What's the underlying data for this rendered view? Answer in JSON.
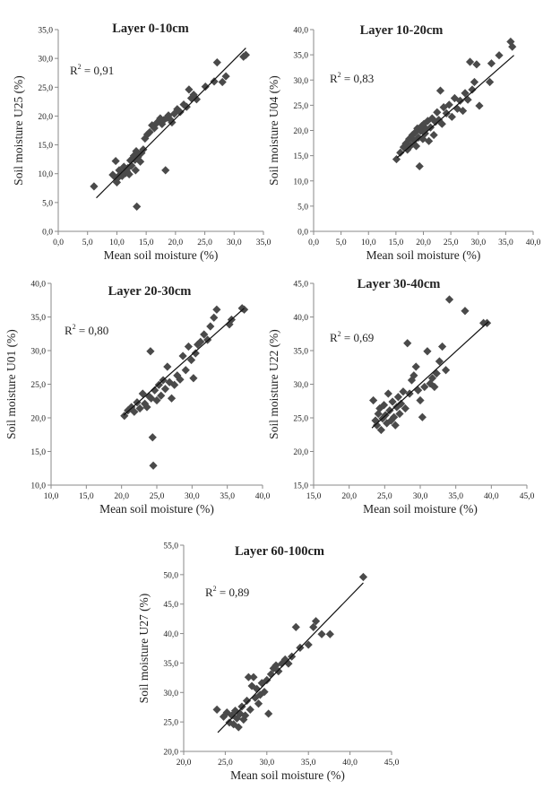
{
  "chart_data": [
    {
      "type": "scatter",
      "title": "Layer 0-10cm",
      "xlabel": "Mean soil moisture (%)",
      "ylabel": "Soil moisture U25 (%)",
      "r2_prefix": "R",
      "r2_exp": "2",
      "r2_value": " = 0,91",
      "xlim": [
        0,
        35
      ],
      "ylim": [
        0,
        35
      ],
      "xticks": [
        "0,0",
        "5,0",
        "10,0",
        "15,0",
        "20,0",
        "25,0",
        "30,0",
        "35,0"
      ],
      "yticks": [
        "0,0",
        "5,0",
        "10,0",
        "15,0",
        "20,0",
        "25,0",
        "30,0",
        "35,0"
      ],
      "trendline": [
        [
          6.5,
          5.8
        ],
        [
          32.0,
          31.8
        ]
      ],
      "points": [
        [
          6.1,
          7.8
        ],
        [
          9.3,
          9.8
        ],
        [
          9.6,
          9.5
        ],
        [
          9.8,
          12.2
        ],
        [
          10.0,
          8.5
        ],
        [
          10.1,
          9.2
        ],
        [
          10.4,
          10.6
        ],
        [
          10.6,
          9.9
        ],
        [
          10.9,
          9.6
        ],
        [
          11.2,
          11.2
        ],
        [
          11.5,
          10.1
        ],
        [
          11.7,
          10.4
        ],
        [
          11.9,
          11.0
        ],
        [
          12.1,
          9.9
        ],
        [
          12.3,
          12.3
        ],
        [
          12.5,
          11.4
        ],
        [
          12.7,
          12.7
        ],
        [
          12.9,
          13.1
        ],
        [
          13.1,
          12.4
        ],
        [
          13.3,
          13.9
        ],
        [
          13.2,
          10.6
        ],
        [
          13.4,
          4.3
        ],
        [
          13.6,
          12.9
        ],
        [
          13.8,
          13.4
        ],
        [
          14.0,
          12.1
        ],
        [
          14.2,
          13.6
        ],
        [
          14.5,
          14.2
        ],
        [
          14.8,
          16.1
        ],
        [
          15.2,
          16.8
        ],
        [
          15.6,
          17.2
        ],
        [
          16.0,
          18.4
        ],
        [
          16.4,
          17.9
        ],
        [
          16.8,
          18.8
        ],
        [
          17.1,
          19.1
        ],
        [
          17.4,
          19.6
        ],
        [
          17.7,
          18.6
        ],
        [
          18.0,
          19.3
        ],
        [
          18.3,
          10.6
        ],
        [
          18.5,
          19.7
        ],
        [
          18.8,
          20.1
        ],
        [
          19.1,
          19.4
        ],
        [
          19.4,
          18.9
        ],
        [
          19.8,
          20.4
        ],
        [
          20.3,
          21.2
        ],
        [
          20.8,
          20.7
        ],
        [
          21.4,
          22.0
        ],
        [
          21.9,
          21.6
        ],
        [
          22.3,
          24.6
        ],
        [
          22.7,
          23.1
        ],
        [
          23.1,
          23.7
        ],
        [
          23.6,
          22.9
        ],
        [
          25.1,
          25.1
        ],
        [
          26.6,
          26.0
        ],
        [
          27.1,
          29.3
        ],
        [
          28.0,
          25.9
        ],
        [
          28.6,
          26.9
        ],
        [
          31.6,
          30.3
        ],
        [
          32.0,
          30.6
        ]
      ]
    },
    {
      "type": "scatter",
      "title": "Layer 10-20cm",
      "xlabel": "Mean soil moisture (%)",
      "ylabel": "Soil moisture U04 (%)",
      "r2_prefix": "R",
      "r2_exp": "2",
      "r2_value": " = 0,83",
      "xlim": [
        0,
        40
      ],
      "ylim": [
        0,
        40
      ],
      "xticks": [
        "0,0",
        "5,0",
        "10,0",
        "15,0",
        "20,0",
        "25,0",
        "30,0",
        "35,0",
        "40,0"
      ],
      "yticks": [
        "0,0",
        "5,0",
        "10,0",
        "15,0",
        "20,0",
        "25,0",
        "30,0",
        "35,0",
        "40,0"
      ],
      "trendline": [
        [
          15.2,
          14.6
        ],
        [
          36.5,
          34.9
        ]
      ],
      "points": [
        [
          15.1,
          14.3
        ],
        [
          15.8,
          15.6
        ],
        [
          16.4,
          16.7
        ],
        [
          16.8,
          17.4
        ],
        [
          17.1,
          16.2
        ],
        [
          17.4,
          18.3
        ],
        [
          17.7,
          17.0
        ],
        [
          18.0,
          19.1
        ],
        [
          18.3,
          18.0
        ],
        [
          18.5,
          19.6
        ],
        [
          18.7,
          16.9
        ],
        [
          18.9,
          20.4
        ],
        [
          19.1,
          18.6
        ],
        [
          19.3,
          12.9
        ],
        [
          19.5,
          19.9
        ],
        [
          19.7,
          20.9
        ],
        [
          19.9,
          18.3
        ],
        [
          20.1,
          21.3
        ],
        [
          20.3,
          19.4
        ],
        [
          20.5,
          20.3
        ],
        [
          20.8,
          21.9
        ],
        [
          21.0,
          17.9
        ],
        [
          21.3,
          20.6
        ],
        [
          21.6,
          22.4
        ],
        [
          21.9,
          19.1
        ],
        [
          22.2,
          21.7
        ],
        [
          22.5,
          23.6
        ],
        [
          22.8,
          22.1
        ],
        [
          23.1,
          27.9
        ],
        [
          23.4,
          21.3
        ],
        [
          23.7,
          24.6
        ],
        [
          24.2,
          23.4
        ],
        [
          24.7,
          25.1
        ],
        [
          25.2,
          22.7
        ],
        [
          25.7,
          26.4
        ],
        [
          26.2,
          24.3
        ],
        [
          26.7,
          25.9
        ],
        [
          27.2,
          23.9
        ],
        [
          27.6,
          27.4
        ],
        [
          28.1,
          26.1
        ],
        [
          28.5,
          33.6
        ],
        [
          28.9,
          28.1
        ],
        [
          29.3,
          29.6
        ],
        [
          29.7,
          33.1
        ],
        [
          30.2,
          24.9
        ],
        [
          32.1,
          29.6
        ],
        [
          32.4,
          33.3
        ],
        [
          33.8,
          34.9
        ],
        [
          35.9,
          37.6
        ],
        [
          36.2,
          36.6
        ]
      ]
    },
    {
      "type": "scatter",
      "title": "Layer 20-30cm",
      "xlabel": "Mean soil moisture (%)",
      "ylabel": "Soil moisture U01 (%)",
      "r2_prefix": "R",
      "r2_exp": "2",
      "r2_value": " = 0,80",
      "xlim": [
        10,
        40
      ],
      "ylim": [
        10,
        40
      ],
      "xticks": [
        "10,0",
        "15,0",
        "20,0",
        "25,0",
        "30,0",
        "35,0",
        "40,0"
      ],
      "yticks": [
        "10,0",
        "15,0",
        "20,0",
        "25,0",
        "30,0",
        "35,0",
        "40,0"
      ],
      "trendline": [
        [
          20.3,
          20.4
        ],
        [
          37.4,
          36.3
        ]
      ],
      "points": [
        [
          20.4,
          20.3
        ],
        [
          20.9,
          21.1
        ],
        [
          21.4,
          21.6
        ],
        [
          21.8,
          20.9
        ],
        [
          22.2,
          22.3
        ],
        [
          22.6,
          21.4
        ],
        [
          23.0,
          23.6
        ],
        [
          23.3,
          22.1
        ],
        [
          23.6,
          21.6
        ],
        [
          23.9,
          23.2
        ],
        [
          24.1,
          29.9
        ],
        [
          24.2,
          22.9
        ],
        [
          24.4,
          17.1
        ],
        [
          24.5,
          12.9
        ],
        [
          24.7,
          24.1
        ],
        [
          25.0,
          22.6
        ],
        [
          25.3,
          24.9
        ],
        [
          25.6,
          23.3
        ],
        [
          25.9,
          25.6
        ],
        [
          26.2,
          24.3
        ],
        [
          26.5,
          27.6
        ],
        [
          26.8,
          25.3
        ],
        [
          27.1,
          22.9
        ],
        [
          27.5,
          24.9
        ],
        [
          27.9,
          26.3
        ],
        [
          28.3,
          25.7
        ],
        [
          28.7,
          29.2
        ],
        [
          29.1,
          27.1
        ],
        [
          29.5,
          30.6
        ],
        [
          29.9,
          28.6
        ],
        [
          30.2,
          25.9
        ],
        [
          30.5,
          29.6
        ],
        [
          30.8,
          30.9
        ],
        [
          31.2,
          31.3
        ],
        [
          31.7,
          32.4
        ],
        [
          32.2,
          31.6
        ],
        [
          32.6,
          33.6
        ],
        [
          33.1,
          34.9
        ],
        [
          33.5,
          36.1
        ],
        [
          35.3,
          33.9
        ],
        [
          35.6,
          34.6
        ],
        [
          37.1,
          36.3
        ],
        [
          37.4,
          36.1
        ]
      ]
    },
    {
      "type": "scatter",
      "title": "Layer 30-40cm",
      "xlabel": "Mean soil moisture (%)",
      "ylabel": "Soil moisture U22 (%)",
      "r2_prefix": "R",
      "r2_exp": "2",
      "r2_value": " = 0,69",
      "xlim": [
        15,
        45
      ],
      "ylim": [
        15,
        45
      ],
      "xticks": [
        "15,0",
        "20,0",
        "25,0",
        "30,0",
        "35,0",
        "40,0",
        "45,0"
      ],
      "yticks": [
        "15,0",
        "20,0",
        "25,0",
        "30,0",
        "35,0",
        "40,0",
        "45,0"
      ],
      "trendline": [
        [
          23.2,
          23.5
        ],
        [
          39.6,
          39.3
        ]
      ],
      "points": [
        [
          23.4,
          27.6
        ],
        [
          23.7,
          24.6
        ],
        [
          23.9,
          23.9
        ],
        [
          24.1,
          25.6
        ],
        [
          24.3,
          26.4
        ],
        [
          24.5,
          23.2
        ],
        [
          24.7,
          24.9
        ],
        [
          24.9,
          26.9
        ],
        [
          25.1,
          25.4
        ],
        [
          25.3,
          24.2
        ],
        [
          25.5,
          28.6
        ],
        [
          25.7,
          26.1
        ],
        [
          25.9,
          24.6
        ],
        [
          26.1,
          27.4
        ],
        [
          26.3,
          25.1
        ],
        [
          26.5,
          23.9
        ],
        [
          26.7,
          26.6
        ],
        [
          26.9,
          28.1
        ],
        [
          27.1,
          25.6
        ],
        [
          27.3,
          27.1
        ],
        [
          27.6,
          28.9
        ],
        [
          27.9,
          26.4
        ],
        [
          28.2,
          36.1
        ],
        [
          28.5,
          28.6
        ],
        [
          28.8,
          30.6
        ],
        [
          29.1,
          31.3
        ],
        [
          29.4,
          32.6
        ],
        [
          29.7,
          29.1
        ],
        [
          30.0,
          27.6
        ],
        [
          30.3,
          25.1
        ],
        [
          30.6,
          29.6
        ],
        [
          31.0,
          34.9
        ],
        [
          31.4,
          30.1
        ],
        [
          31.7,
          30.9
        ],
        [
          32.0,
          29.6
        ],
        [
          32.3,
          31.6
        ],
        [
          32.7,
          33.4
        ],
        [
          33.1,
          35.6
        ],
        [
          33.6,
          32.1
        ],
        [
          34.1,
          42.6
        ],
        [
          36.3,
          40.9
        ],
        [
          38.9,
          39.1
        ],
        [
          39.4,
          39.1
        ]
      ]
    },
    {
      "type": "scatter",
      "title": "Layer 60-100cm",
      "xlabel": "Mean soil moisture (%)",
      "ylabel": "Soil moisture U27 (%)",
      "r2_prefix": "R",
      "r2_exp": "2",
      "r2_value": " = 0,89",
      "xlim": [
        20,
        45
      ],
      "ylim": [
        20,
        55
      ],
      "xticks": [
        "20,0",
        "25,0",
        "30,0",
        "35,0",
        "40,0",
        "45,0"
      ],
      "yticks": [
        "20,0",
        "25,0",
        "30,0",
        "35,0",
        "40,0",
        "45,0",
        "50,0",
        "55,0"
      ],
      "trendline": [
        [
          24.1,
          23.2
        ],
        [
          41.6,
          48.6
        ]
      ],
      "points": [
        [
          24.0,
          27.1
        ],
        [
          24.8,
          25.9
        ],
        [
          25.2,
          26.6
        ],
        [
          25.5,
          24.9
        ],
        [
          25.8,
          26.1
        ],
        [
          26.0,
          24.6
        ],
        [
          26.2,
          26.9
        ],
        [
          26.4,
          25.6
        ],
        [
          26.6,
          24.1
        ],
        [
          26.8,
          26.4
        ],
        [
          27.0,
          27.6
        ],
        [
          27.2,
          25.4
        ],
        [
          27.4,
          26.1
        ],
        [
          27.6,
          28.6
        ],
        [
          27.8,
          32.6
        ],
        [
          28.0,
          27.1
        ],
        [
          28.2,
          31.1
        ],
        [
          28.4,
          32.6
        ],
        [
          28.6,
          29.1
        ],
        [
          28.8,
          30.6
        ],
        [
          29.0,
          28.1
        ],
        [
          29.2,
          29.6
        ],
        [
          29.4,
          31.6
        ],
        [
          29.7,
          30.1
        ],
        [
          30.0,
          32.1
        ],
        [
          30.2,
          26.4
        ],
        [
          30.5,
          33.1
        ],
        [
          30.8,
          34.1
        ],
        [
          31.1,
          34.6
        ],
        [
          31.4,
          33.6
        ],
        [
          31.8,
          34.9
        ],
        [
          32.2,
          35.6
        ],
        [
          32.6,
          34.9
        ],
        [
          33.0,
          36.1
        ],
        [
          33.5,
          41.1
        ],
        [
          34.0,
          37.6
        ],
        [
          35.0,
          38.1
        ],
        [
          35.6,
          41.1
        ],
        [
          35.9,
          42.1
        ],
        [
          36.6,
          39.9
        ],
        [
          37.6,
          39.9
        ],
        [
          41.6,
          49.6
        ]
      ]
    }
  ]
}
